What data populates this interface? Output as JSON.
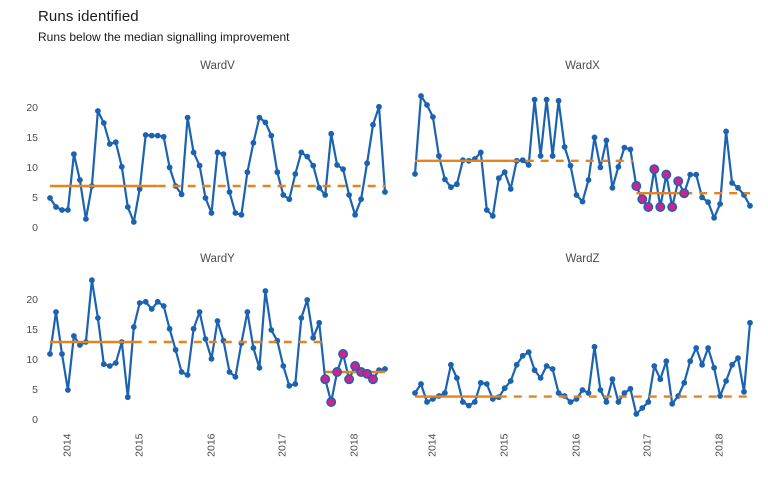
{
  "header": {
    "title": "Runs identified",
    "subtitle": "Runs below the median signalling improvement"
  },
  "chart_data": {
    "type": "line",
    "title": "Runs identified",
    "subtitle": "Runs below the median signalling improvement",
    "description": "Faceted monthly run charts for four wards; orange line = baseline median (solid over baseline period, dashed as projection); magenta points = sustained run below the median with a new (lower) median drawn through it.",
    "x_start": "2013-10",
    "x_tick_labels": [
      "2014",
      "2015",
      "2016",
      "2017",
      "2018"
    ],
    "x_tick_indices": [
      3,
      15,
      27,
      39,
      51
    ],
    "y_ticks": [
      0,
      5,
      10,
      15,
      20
    ],
    "ylim": [
      -1,
      24
    ],
    "grid": "off",
    "legend": "none",
    "colors": {
      "line": "#1b63b0",
      "median": "#e8821d",
      "signal": "#d2218f",
      "title_text": "#1a1a1a",
      "tick_text": "#4d4d4d"
    },
    "panels": [
      {
        "name": "WardV",
        "median": 7.0,
        "median_solid_end": 18,
        "run_median": null,
        "run_start": null,
        "run_solid_end": null,
        "highlight_start": null,
        "highlight_end": null,
        "values": [
          5,
          3.5,
          3,
          3,
          12.3,
          8,
          1.5,
          7,
          19.5,
          17.5,
          14,
          14.3,
          10.2,
          3.5,
          1,
          6.5,
          15.5,
          15.4,
          15.4,
          15.2,
          10.1,
          7,
          5.6,
          18.4,
          12.6,
          10.4,
          5,
          2.5,
          12.6,
          12.3,
          6,
          2.5,
          2.2,
          9.3,
          14.2,
          18.4,
          17.6,
          15.4,
          9.3,
          5.5,
          4.8,
          9,
          12.6,
          11.9,
          10.4,
          6.7,
          5.5,
          15.7,
          10.5,
          9.8,
          5.5,
          2.2,
          4.8,
          10.8,
          17.2,
          20.2,
          6.0
        ]
      },
      {
        "name": "WardX",
        "median": 11.2,
        "median_solid_end": 16,
        "run_median": 5.8,
        "run_start": 37,
        "run_solid_end": 45,
        "highlight_start": 37,
        "highlight_end": 45,
        "values": [
          9,
          22,
          20.5,
          18.5,
          12,
          8.1,
          6.8,
          7.3,
          11.3,
          11.2,
          11.5,
          12.6,
          3,
          2,
          8.3,
          9.3,
          6.5,
          11.2,
          11.3,
          10.5,
          21.4,
          12,
          21.4,
          12,
          21.2,
          13.5,
          10.4,
          5.5,
          4.4,
          8,
          15.1,
          10.1,
          14.6,
          6.7,
          10.2,
          13.4,
          13.1,
          7,
          4.8,
          3.5,
          9.8,
          3.5,
          8.9,
          3.5,
          7.8,
          5.8,
          8.9,
          8.9,
          5.1,
          4.3,
          1.7,
          4,
          16.1,
          7.5,
          6.7,
          5.5,
          3.7
        ]
      },
      {
        "name": "WardY",
        "median": 13.0,
        "median_solid_end": 14,
        "run_median": 8.0,
        "run_start": 46,
        "run_solid_end": 56,
        "highlight_start": 46,
        "highlight_end": 54,
        "values": [
          11,
          18,
          11,
          5,
          14,
          12.5,
          13,
          23.3,
          17,
          9.3,
          9,
          9.5,
          13,
          3.8,
          15.5,
          19.5,
          19.7,
          18.5,
          19.7,
          19,
          15.2,
          11.7,
          8,
          7.5,
          15.2,
          18,
          13.5,
          10.2,
          16.5,
          13.2,
          8,
          7.2,
          12.8,
          18,
          12,
          8.7,
          21.5,
          15,
          13.2,
          9,
          5.7,
          6,
          17,
          20,
          13.7,
          16.2,
          6.8,
          3,
          8,
          11,
          6.8,
          9,
          8,
          7.7,
          6.8,
          8.3,
          8.5
        ]
      },
      {
        "name": "WardZ",
        "median": 3.9,
        "median_solid_end": 14,
        "run_median": null,
        "run_start": null,
        "run_solid_end": null,
        "highlight_start": null,
        "highlight_end": null,
        "values": [
          4.5,
          6,
          3,
          3.5,
          4,
          4.5,
          9.2,
          7,
          3,
          2.4,
          3,
          6.2,
          6,
          3.5,
          3.8,
          5.3,
          6.5,
          9.2,
          10.7,
          11.3,
          8.3,
          7,
          9,
          8.5,
          4.5,
          4,
          3,
          3.5,
          5,
          4.5,
          12.2,
          5,
          3,
          6.8,
          3,
          4.5,
          5.2,
          1,
          2,
          3,
          9,
          6.8,
          9.8,
          2.7,
          4,
          6.2,
          9.8,
          12,
          9.2,
          12,
          8.7,
          4,
          6.5,
          9.2,
          10.3,
          4.7,
          16.2
        ]
      }
    ]
  }
}
